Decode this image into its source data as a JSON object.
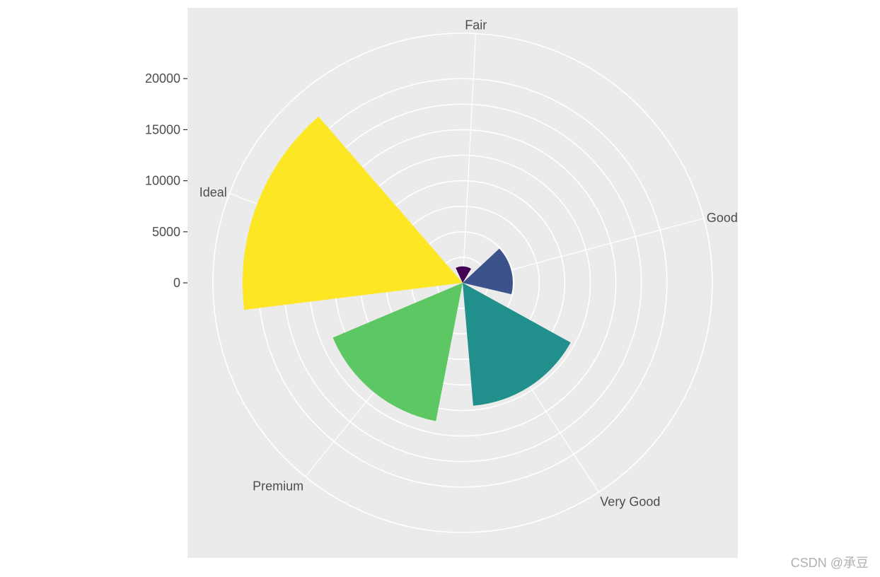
{
  "chart_data": {
    "type": "coxcomb",
    "title": "",
    "xlabel": "",
    "ylabel": "",
    "coord": "polar",
    "categories": [
      "Fair",
      "Good",
      "Very Good",
      "Premium",
      "Ideal"
    ],
    "values": [
      1610,
      4906,
      12082,
      13791,
      21551
    ],
    "colors": [
      "#440154",
      "#3b528b",
      "#21908c",
      "#5dc863",
      "#fde725"
    ],
    "radial_ticks": [
      0,
      5000,
      10000,
      15000,
      20000
    ],
    "radial_tick_labels": [
      "0",
      "5000",
      "10000",
      "15000",
      "20000"
    ],
    "grid": true,
    "legend": "none"
  },
  "watermark": "CSDN @承豆"
}
